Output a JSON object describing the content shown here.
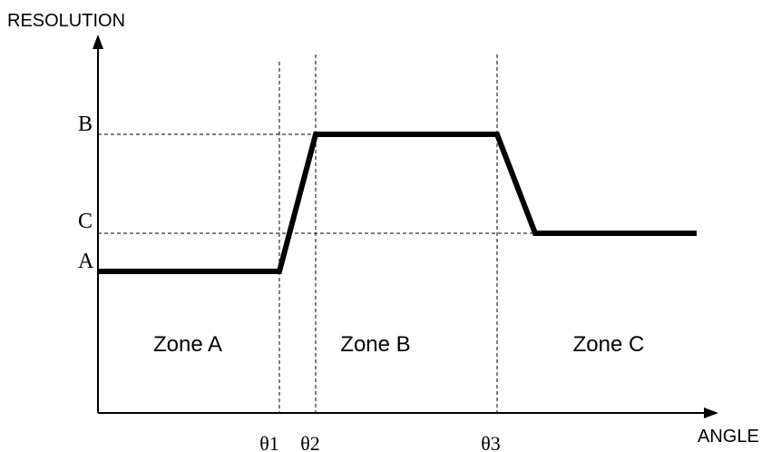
{
  "axes": {
    "y_label": "RESOLUTION",
    "x_label": "ANGLE"
  },
  "levels": [
    "B",
    "C",
    "A"
  ],
  "angles": [
    "θ1",
    "θ2",
    "θ3"
  ],
  "zones": [
    "Zone A",
    "Zone B",
    "Zone C"
  ]
}
